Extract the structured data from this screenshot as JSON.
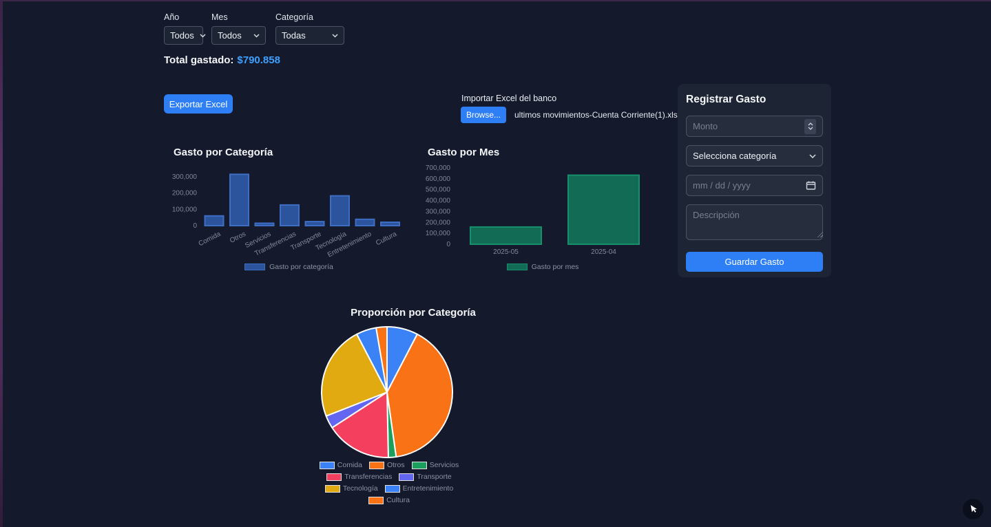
{
  "filters": {
    "year": {
      "label": "Año",
      "value": "Todos"
    },
    "month": {
      "label": "Mes",
      "value": "Todos"
    },
    "category": {
      "label": "Categoría",
      "value": "Todas"
    }
  },
  "total": {
    "label": "Total gastado:",
    "amount": "$790.858"
  },
  "actions": {
    "export_label": "Exportar Excel",
    "import_label": "Importar Excel del banco",
    "browse_label": "Browse...",
    "filename": "ultimos movimientos-Cuenta Corriente(1).xlsx"
  },
  "register": {
    "title": "Registrar Gasto",
    "amount_placeholder": "Monto",
    "category_placeholder": "Selecciona categoría",
    "date_placeholder": "mm / dd / yyyy",
    "description_placeholder": "Descripción",
    "save_label": "Guardar Gasto"
  },
  "colors": {
    "accent_blue": "#2e7ff5",
    "total_amount": "#3da0ff",
    "page_bg": "#141a2c",
    "panel_bg": "#1d2434",
    "edge_purple": "#55325f"
  },
  "chart_data": [
    {
      "type": "bar",
      "title": "Gasto por Categoría",
      "legend": "Gasto por categoría",
      "categories": [
        "Comida",
        "Otros",
        "Servicios",
        "Transferencias",
        "Transporte",
        "Tecnología",
        "Entretenimiento",
        "Cultura"
      ],
      "values": [
        60000,
        315000,
        15000,
        127000,
        25000,
        183000,
        39000,
        21000
      ],
      "yticks": [
        0,
        100000,
        200000,
        300000
      ],
      "ylim": [
        0,
        350000
      ],
      "bar_fill": "#2b549c",
      "bar_border": "#3e6dc4"
    },
    {
      "type": "bar",
      "title": "Gasto por Mes",
      "legend": "Gasto por mes",
      "categories": [
        "2025-05",
        "2025-04"
      ],
      "values": [
        158000,
        633000
      ],
      "yticks": [
        0,
        100000,
        200000,
        300000,
        400000,
        500000,
        600000,
        700000
      ],
      "ylim": [
        0,
        700000
      ],
      "bar_fill": "#116b55",
      "bar_border": "#15906b"
    },
    {
      "type": "pie",
      "title": "Proporción por Categoría",
      "labels": [
        "Comida",
        "Otros",
        "Servicios",
        "Transferencias",
        "Transporte",
        "Tecnología",
        "Entretenimiento",
        "Cultura"
      ],
      "values": [
        60000,
        315000,
        15000,
        127000,
        25000,
        183000,
        39000,
        21000
      ],
      "colors": [
        "#3b82f6",
        "#f97316",
        "#1aa05c",
        "#f43f5e",
        "#6366f1",
        "#e0aa10",
        "#3b82f6",
        "#f97316"
      ]
    }
  ]
}
